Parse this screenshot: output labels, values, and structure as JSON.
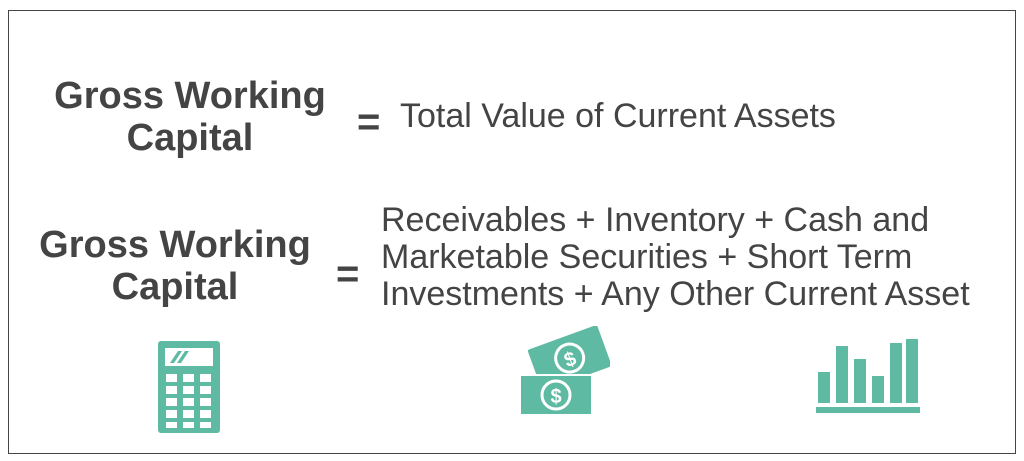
{
  "formulas": [
    {
      "term_line1": "Gross Working",
      "term_line2": "Capital",
      "equals": "=",
      "rhs_lines": [
        "Total Value of Current Assets"
      ]
    },
    {
      "term_line1": "Gross Working",
      "term_line2": "Capital",
      "equals": "=",
      "rhs_lines": [
        "Receivables + Inventory + Cash and",
        "Marketable Securities + Short Term",
        "Investments + Any Other Current  Asset"
      ]
    }
  ],
  "icons": [
    "calculator-icon",
    "money-icon",
    "bar-chart-icon"
  ],
  "colors": {
    "text": "#444444",
    "accent": "#5ebaa2"
  }
}
